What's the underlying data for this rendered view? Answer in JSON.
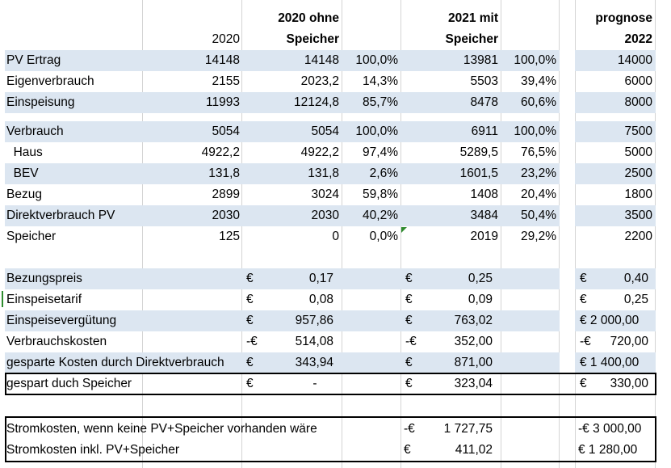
{
  "headers": {
    "col_2020": "2020",
    "col_2020_ohne_l1": "2020 ohne",
    "col_2020_ohne_l2": "Speicher",
    "col_2021_mit_l1": "2021 mit",
    "col_2021_mit_l2": "Speicher",
    "col_prognose_l1": "prognose",
    "col_prognose_l2": "2022"
  },
  "rows": [
    {
      "label": "PV Ertrag",
      "v2020": "14148",
      "v2020o": "14148",
      "p2020o": "100,0%",
      "v2021": "13981",
      "p2021": "100,0%",
      "v2022": "14000"
    },
    {
      "label": "Eigenverbrauch",
      "v2020": "2155",
      "v2020o": "2023,2",
      "p2020o": "14,3%",
      "v2021": "5503",
      "p2021": "39,4%",
      "v2022": "6000"
    },
    {
      "label": "Einspeisung",
      "v2020": "11993",
      "v2020o": "12124,8",
      "p2020o": "85,7%",
      "v2021": "8478",
      "p2021": "60,6%",
      "v2022": "8000"
    },
    {
      "label": "Verbrauch",
      "v2020": "5054",
      "v2020o": "5054",
      "p2020o": "100,0%",
      "v2021": "6911",
      "p2021": "100,0%",
      "v2022": "7500"
    },
    {
      "label": "  Haus",
      "v2020": "4922,2",
      "v2020o": "4922,2",
      "p2020o": "97,4%",
      "v2021": "5289,5",
      "p2021": "76,5%",
      "v2022": "5000"
    },
    {
      "label": "  BEV",
      "v2020": "131,8",
      "v2020o": "131,8",
      "p2020o": "2,6%",
      "v2021": "1601,5",
      "p2021": "23,2%",
      "v2022": "2500"
    },
    {
      "label": "Bezug",
      "v2020": "2899",
      "v2020o": "3024",
      "p2020o": "59,8%",
      "v2021": "1408",
      "p2021": "20,4%",
      "v2022": "1800"
    },
    {
      "label": "Direktverbrauch PV",
      "v2020": "2030",
      "v2020o": "2030",
      "p2020o": "40,2%",
      "v2021": "3484",
      "p2021": "50,4%",
      "v2022": "3500"
    },
    {
      "label": "Speicher",
      "v2020": "125",
      "v2020o": "0",
      "p2020o": "0,0%",
      "v2021": "2019",
      "p2021": "29,2%",
      "v2022": "2200"
    }
  ],
  "money_rows": [
    {
      "label": "Bezungspreis",
      "c1": "€",
      "v1": "0,17",
      "c2": "€",
      "v2": "0,25",
      "c3": "€",
      "v3": "0,40"
    },
    {
      "label": "Einspeisetarif",
      "c1": "€",
      "v1": "0,08",
      "c2": "€",
      "v2": "0,09",
      "c3": "€",
      "v3": "0,25"
    },
    {
      "label": "Einspeisevergütung",
      "c1": "€",
      "v1": "957,86",
      "c2": "€",
      "v2": "763,02",
      "c3": "€ 2 000,00",
      "v3": ""
    },
    {
      "label": "Verbrauchskosten",
      "c1": "-€",
      "v1": "514,08",
      "c2": "-€",
      "v2": "352,00",
      "c3": "-€",
      "v3": "720,00"
    },
    {
      "label": "gesparte Kosten durch Direktverbrauch",
      "c1": "€",
      "v1": "343,94",
      "c2": "€",
      "v2": "871,00",
      "c3": "€ 1 400,00",
      "v3": ""
    },
    {
      "label": "gespart duch Speicher",
      "c1": "€",
      "v1": "-",
      "c2": "€",
      "v2": "323,04",
      "c3": "€",
      "v3": "330,00"
    }
  ],
  "summary_rows": [
    {
      "label": "Stromkosten, wenn keine PV+Speicher vorhanden wäre",
      "c2": "-€",
      "v2": "1 727,75",
      "c3": "-€ 3 000,00"
    },
    {
      "label": "Stromkosten inkl. PV+Speicher",
      "c2": "€",
      "v2": "411,02",
      "c3": "€ 1 280,00"
    }
  ]
}
